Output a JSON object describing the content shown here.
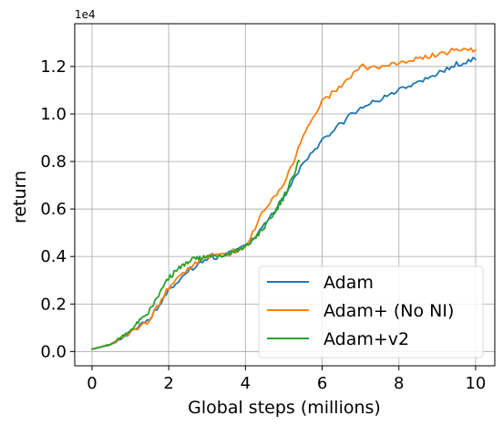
{
  "chart_data": {
    "type": "line",
    "xlabel": "Global steps (millions)",
    "ylabel": "return",
    "y_offset_label": "1e4",
    "xlim": [
      -0.45,
      10.5
    ],
    "ylim": [
      -0.06,
      1.38
    ],
    "x_ticks": [
      0,
      2,
      4,
      6,
      8,
      10
    ],
    "x_tick_labels": [
      "0",
      "2",
      "4",
      "6",
      "8",
      "10"
    ],
    "y_ticks": [
      0.0,
      0.2,
      0.4,
      0.6,
      0.8,
      1.0,
      1.2
    ],
    "y_tick_labels": [
      "0.0",
      "0.2",
      "0.4",
      "0.6",
      "0.8",
      "1.0",
      "1.2"
    ],
    "grid": true,
    "legend_position": "lower-right",
    "series": [
      {
        "name": "Adam",
        "color": "#1f77b4",
        "x": [
          0,
          0.5,
          1.0,
          1.5,
          2.0,
          2.5,
          3.0,
          3.5,
          4.0,
          4.5,
          5.0,
          5.5,
          6.0,
          6.5,
          7.0,
          7.5,
          8.0,
          8.5,
          9.0,
          9.5,
          10.0
        ],
        "y": [
          0.01,
          0.03,
          0.08,
          0.14,
          0.26,
          0.34,
          0.39,
          0.41,
          0.44,
          0.53,
          0.65,
          0.79,
          0.89,
          0.96,
          1.03,
          1.06,
          1.1,
          1.13,
          1.17,
          1.21,
          1.23
        ]
      },
      {
        "name": "Adam+ (No NI)",
        "color": "#ff7f0e",
        "x": [
          0,
          0.5,
          1.0,
          1.5,
          2.0,
          2.5,
          3.0,
          3.5,
          4.0,
          4.5,
          5.0,
          5.5,
          6.0,
          6.5,
          7.0,
          7.5,
          8.0,
          8.5,
          9.0,
          9.5,
          10.0
        ],
        "y": [
          0.01,
          0.03,
          0.08,
          0.13,
          0.27,
          0.35,
          0.4,
          0.41,
          0.44,
          0.6,
          0.7,
          0.9,
          1.05,
          1.12,
          1.2,
          1.19,
          1.22,
          1.23,
          1.25,
          1.27,
          1.27
        ]
      },
      {
        "name": "Adam+v2",
        "color": "#2ca02c",
        "x": [
          0,
          0.5,
          1.0,
          1.5,
          2.0,
          2.5,
          3.0,
          3.5,
          4.0,
          4.5,
          5.0,
          5.4
        ],
        "y": [
          0.01,
          0.03,
          0.09,
          0.17,
          0.31,
          0.38,
          0.4,
          0.41,
          0.44,
          0.52,
          0.65,
          0.8
        ]
      }
    ]
  }
}
